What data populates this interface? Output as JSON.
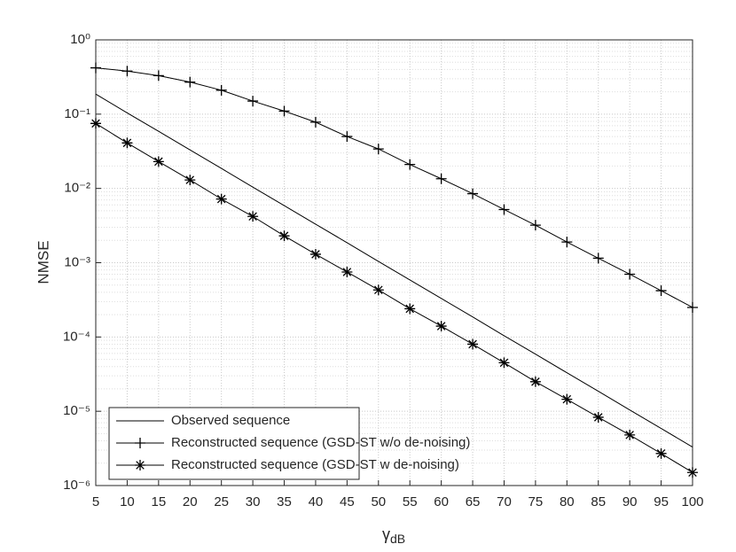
{
  "chart_data": {
    "type": "line",
    "x_label": {
      "symbol": "γ",
      "subscript": "dB"
    },
    "y_label": "NMSE",
    "log_y": true,
    "grid": true,
    "minor_grid": true,
    "legend_position": "lower left",
    "x": [
      5,
      10,
      15,
      20,
      25,
      30,
      35,
      40,
      45,
      50,
      55,
      60,
      65,
      70,
      75,
      80,
      85,
      90,
      95,
      100
    ],
    "series": [
      {
        "name": "Observed sequence",
        "color": "#000000",
        "marker": "none",
        "values": [
          0.186,
          0.104,
          0.0587,
          0.033,
          0.0186,
          0.0104,
          0.00587,
          0.0033,
          0.00186,
          0.00104,
          0.000587,
          0.00033,
          0.000186,
          0.000104,
          5.87e-05,
          3.3e-05,
          1.86e-05,
          1.04e-05,
          5.87e-06,
          3.3e-06
        ]
      },
      {
        "name": "Reconstructed sequence (GSD-ST w/o de-noising)",
        "color": "#000000",
        "marker": "plus",
        "values": [
          0.42,
          0.38,
          0.33,
          0.27,
          0.21,
          0.15,
          0.11,
          0.078,
          0.05,
          0.034,
          0.021,
          0.0135,
          0.0085,
          0.0052,
          0.0032,
          0.0019,
          0.00115,
          0.0007,
          0.00042,
          0.00025
        ]
      },
      {
        "name": "Reconstructed sequence (GSD-ST w de-noising)",
        "color": "#000000",
        "marker": "star",
        "values": [
          0.075,
          0.041,
          0.023,
          0.013,
          0.0072,
          0.0042,
          0.0023,
          0.0013,
          0.00075,
          0.00043,
          0.00024,
          0.00014,
          8e-05,
          4.5e-05,
          2.5e-05,
          1.45e-05,
          8.3e-06,
          4.8e-06,
          2.7e-06,
          1.5e-06
        ]
      }
    ],
    "xlim": [
      5,
      100
    ],
    "xticks": [
      5,
      10,
      15,
      20,
      25,
      30,
      35,
      40,
      45,
      50,
      55,
      60,
      65,
      70,
      75,
      80,
      85,
      90,
      95,
      100
    ],
    "ylim": [
      1e-06,
      1
    ],
    "yticks": [
      {
        "value": 1e-06,
        "label": "10⁻⁶"
      },
      {
        "value": 1e-05,
        "label": "10⁻⁵"
      },
      {
        "value": 0.0001,
        "label": "10⁻⁴"
      },
      {
        "value": 0.001,
        "label": "10⁻³"
      },
      {
        "value": 0.01,
        "label": "10⁻²"
      },
      {
        "value": 0.1,
        "label": "10⁻¹"
      },
      {
        "value": 1,
        "label": "10⁰"
      }
    ]
  }
}
